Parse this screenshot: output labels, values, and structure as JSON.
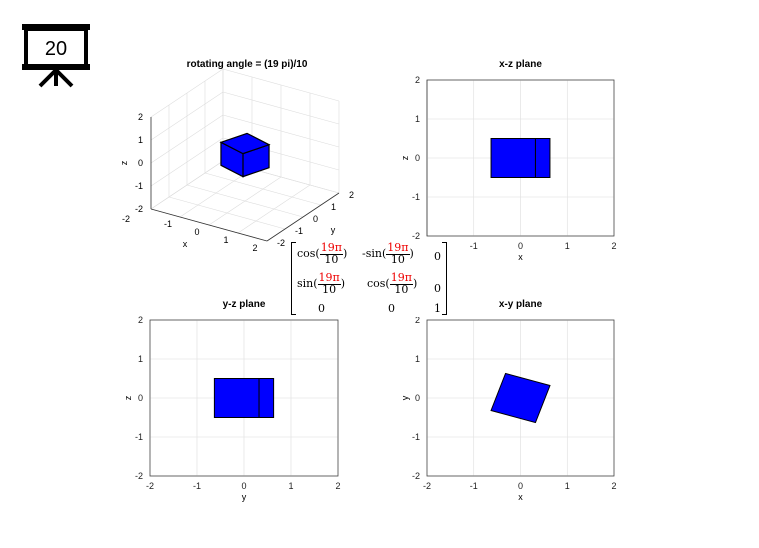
{
  "slide": {
    "page_number": "20",
    "icon": "projector-screen-icon"
  },
  "colors": {
    "face": "#0000ff",
    "edge": "#000000",
    "grid": "#dddddd",
    "angle": "#ee0000"
  },
  "matrix": {
    "angle_num": "19π",
    "angle_den": "10",
    "r1": [
      "cos(",
      "-sin(",
      "0"
    ],
    "r2": [
      "sin(",
      "cos(",
      "0"
    ],
    "r3": [
      "0",
      "0",
      "1"
    ],
    "close": ")"
  },
  "chart_data": [
    {
      "type": "3d-surface",
      "title": "rotating angle = (19 pi)/10",
      "xlabel": "x",
      "ylabel": "y",
      "zlabel": "z",
      "xlim": [
        -2,
        2
      ],
      "ylim": [
        -2,
        2
      ],
      "zlim": [
        -2,
        2
      ],
      "xticks": [
        "-1",
        "0",
        "1",
        "2"
      ],
      "yticks": [
        "-2",
        "-1",
        "0",
        "1",
        "2"
      ],
      "zticks": [
        "2",
        "1",
        "0",
        "-1",
        "-2"
      ],
      "xtick_extra": "-2",
      "cube": {
        "side": 1,
        "center": [
          0,
          0,
          0
        ],
        "rotation_rad": 5.969
      }
    },
    {
      "type": "polygon",
      "title": "x-z plane",
      "xlabel": "x",
      "ylabel": "z",
      "xlim": [
        -2,
        2
      ],
      "ylim": [
        -2,
        2
      ],
      "xticks": [
        -1,
        0,
        1,
        2
      ],
      "yticks": [
        2,
        1,
        0,
        -1,
        -2
      ],
      "polygons": [
        [
          [
            -0.63,
            -0.5
          ],
          [
            0.32,
            -0.5
          ],
          [
            0.32,
            0.5
          ],
          [
            -0.63,
            0.5
          ]
        ],
        [
          [
            0.32,
            -0.5
          ],
          [
            0.63,
            -0.5
          ],
          [
            0.63,
            0.5
          ],
          [
            0.32,
            0.5
          ]
        ]
      ]
    },
    {
      "type": "polygon",
      "title": "y-z plane",
      "xlabel": "y",
      "ylabel": "z",
      "xlim": [
        -2,
        2
      ],
      "ylim": [
        -2,
        2
      ],
      "xticks": [
        -2,
        -1,
        0,
        1,
        2
      ],
      "yticks": [
        2,
        1,
        0,
        -1,
        -2
      ],
      "polygons": [
        [
          [
            -0.63,
            -0.5
          ],
          [
            0.32,
            -0.5
          ],
          [
            0.32,
            0.5
          ],
          [
            -0.63,
            0.5
          ]
        ],
        [
          [
            0.32,
            -0.5
          ],
          [
            0.63,
            -0.5
          ],
          [
            0.63,
            0.5
          ],
          [
            0.32,
            0.5
          ]
        ]
      ]
    },
    {
      "type": "polygon",
      "title": "x-y plane",
      "xlabel": "x",
      "ylabel": "y",
      "xlim": [
        -2,
        2
      ],
      "ylim": [
        -2,
        2
      ],
      "xticks": [
        -2,
        -1,
        0,
        1,
        2
      ],
      "yticks": [
        2,
        1,
        0,
        -1,
        -2
      ],
      "polygons": [
        [
          [
            0.63,
            0.32
          ],
          [
            0.32,
            -0.63
          ],
          [
            -0.63,
            -0.32
          ],
          [
            -0.32,
            0.63
          ]
        ]
      ]
    }
  ]
}
